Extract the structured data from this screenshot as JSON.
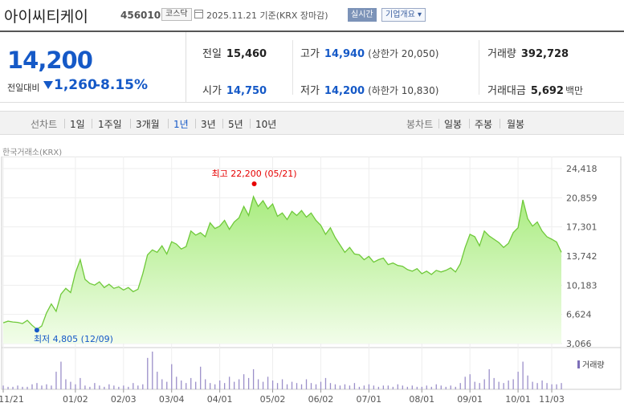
{
  "header": {
    "company": "아이씨티케이",
    "code": "456010",
    "market": "코스닥",
    "date_text": "2025.11.21  기준(KRX 장마감)",
    "realtime": "실시간",
    "company_info": "기업개요 ▾"
  },
  "quote": {
    "price": "14,200",
    "change_label": "전일대비",
    "change": "1,260",
    "change_pct": "-8.15%",
    "prev_close_label": "전일",
    "prev_close": "15,460",
    "open_label": "시가",
    "open": "14,750",
    "high_label": "고가",
    "high": "14,940",
    "upper_limit": "(상한가 20,050)",
    "low_label": "저가",
    "low": "14,200",
    "lower_limit": "(하한가 10,830)",
    "volume_label": "거래량",
    "volume": "392,728",
    "amount_label": "거래대금",
    "amount": "5,692",
    "amount_unit": "백만"
  },
  "tabs": {
    "line_label": "선차트",
    "periods": [
      "1일",
      "1주일",
      "3개월",
      "1년",
      "3년",
      "5년",
      "10년"
    ],
    "active_period": "1년",
    "candle_label": "봉차트",
    "candles": [
      "일봉",
      "주봉",
      "월봉"
    ]
  },
  "exchange_label": "한국거래소(KRX)",
  "colors": {
    "up": "#e60000",
    "down": "#1559c7",
    "area": "#bff09e",
    "line": "#6fc93a"
  },
  "chart_data": {
    "type": "area",
    "title": "",
    "y_ticks": [
      "24,418",
      "20,859",
      "17,301",
      "13,742",
      "10,183",
      "6,624",
      "3,066"
    ],
    "ylim": [
      3066,
      24418
    ],
    "x_ticks": [
      "11/21",
      "01/02",
      "02/03",
      "03/04",
      "04/01",
      "05/02",
      "06/02",
      "07/01",
      "08/01",
      "09/01",
      "10/01",
      "11/03"
    ],
    "high_annotation": "최고 22,200 (05/21)",
    "low_annotation": "최저 4,805 (12/09)",
    "high_value": 22200,
    "low_value": 4805,
    "volume_label": "거래량",
    "values": [
      5600,
      5800,
      5700,
      5650,
      5500,
      5900,
      5300,
      4805,
      5200,
      6800,
      7900,
      7000,
      9100,
      9800,
      9300,
      11700,
      13300,
      10900,
      10400,
      10200,
      10600,
      9900,
      10300,
      9800,
      10000,
      9600,
      9900,
      9400,
      9700,
      11600,
      13900,
      14500,
      14200,
      15000,
      14000,
      15500,
      15200,
      14600,
      14900,
      16800,
      16300,
      16600,
      16100,
      17800,
      17100,
      17400,
      18100,
      17000,
      17900,
      18400,
      19800,
      18700,
      21000,
      19800,
      20500,
      19500,
      20100,
      18600,
      19000,
      18200,
      19200,
      18700,
      19300,
      18500,
      19000,
      18100,
      17500,
      16400,
      17200,
      16000,
      15100,
      14200,
      14800,
      14000,
      13900,
      13300,
      13700,
      13000,
      13300,
      13500,
      12700,
      12900,
      12600,
      12500,
      12100,
      11900,
      12200,
      11600,
      11900,
      11500,
      12000,
      11800,
      12000,
      12300,
      11800,
      12800,
      14800,
      16400,
      16100,
      15000,
      16800,
      16200,
      15800,
      15400,
      14800,
      15300,
      16600,
      17200,
      20600,
      18300,
      17400,
      17900,
      16800,
      16100,
      15800,
      15460,
      14200
    ],
    "volume": [
      3,
      2,
      2,
      3,
      2,
      2,
      4,
      5,
      3,
      4,
      3,
      14,
      22,
      8,
      6,
      4,
      9,
      3,
      2,
      5,
      3,
      2,
      4,
      3,
      2,
      3,
      2,
      5,
      3,
      4,
      25,
      30,
      14,
      8,
      6,
      20,
      10,
      7,
      5,
      9,
      6,
      18,
      8,
      5,
      4,
      7,
      5,
      10,
      6,
      8,
      12,
      9,
      16,
      8,
      6,
      10,
      7,
      5,
      8,
      4,
      6,
      5,
      4,
      8,
      5,
      4,
      6,
      9,
      5,
      4,
      3,
      4,
      3,
      5,
      2,
      3,
      4,
      3,
      2,
      3,
      3,
      2,
      4,
      3,
      2,
      3,
      2,
      2,
      3,
      2,
      4,
      3,
      2,
      3,
      2,
      5,
      10,
      12,
      6,
      5,
      8,
      16,
      9,
      6,
      5,
      7,
      8,
      14,
      22,
      11,
      6,
      5,
      7,
      5,
      4,
      4,
      5
    ]
  }
}
